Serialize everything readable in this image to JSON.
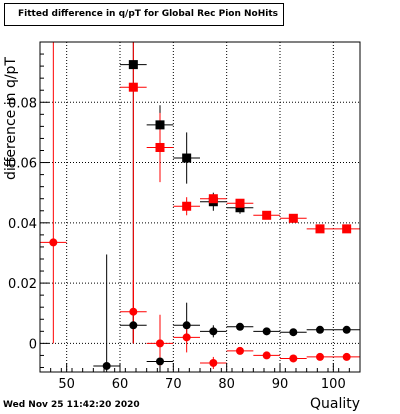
{
  "chart_data": {
    "type": "scatter",
    "title": "Fitted difference in q/pT for Global Rec Pion NoHits",
    "xlabel": "Quality",
    "ylabel": "difference in q/pT",
    "xlim": [
      45,
      105
    ],
    "ylim": [
      -0.0095,
      0.1
    ],
    "x_ticks": [
      "50",
      "60",
      "70",
      "80",
      "90",
      "100"
    ],
    "y_ticks": [
      "0",
      "0.02",
      "0.04",
      "0.06",
      "0.08"
    ],
    "grid": true,
    "footer": "Wed Nov 25 11:42:20 2020",
    "series": [
      {
        "color": "#000000",
        "marker": "square",
        "points": [
          {
            "x": 62.5,
            "y": 0.0925,
            "yerr_lo": 0.0925,
            "yerr_hi": 0.0925,
            "xerr": 2.5
          },
          {
            "x": 67.5,
            "y": 0.0725,
            "yerr_lo": 0.0065,
            "yerr_hi": 0.0065,
            "xerr": 2.5
          },
          {
            "x": 72.5,
            "y": 0.0615,
            "yerr_lo": 0.0085,
            "yerr_hi": 0.0085,
            "xerr": 2.5
          },
          {
            "x": 77.5,
            "y": 0.047,
            "yerr_lo": 0.003,
            "yerr_hi": 0.003,
            "xerr": 2.5
          },
          {
            "x": 82.5,
            "y": 0.045,
            "yerr_lo": 0.002,
            "yerr_hi": 0.002,
            "xerr": 2.5
          }
        ]
      },
      {
        "color": "#ff0000",
        "marker": "square",
        "points": [
          {
            "x": 62.5,
            "y": 0.085,
            "yerr_lo": 0.085,
            "yerr_hi": 0.085,
            "xerr": 2.5
          },
          {
            "x": 67.5,
            "y": 0.065,
            "yerr_lo": 0.0115,
            "yerr_hi": 0.0115,
            "xerr": 2.5
          },
          {
            "x": 72.5,
            "y": 0.0455,
            "yerr_lo": 0.003,
            "yerr_hi": 0.003,
            "xerr": 2.5
          },
          {
            "x": 77.5,
            "y": 0.048,
            "yerr_lo": 0.0015,
            "yerr_hi": 0.0015,
            "xerr": 2.5
          },
          {
            "x": 82.5,
            "y": 0.0465,
            "yerr_lo": 0.001,
            "yerr_hi": 0.001,
            "xerr": 2.5
          },
          {
            "x": 87.5,
            "y": 0.0425,
            "yerr_lo": 0.001,
            "yerr_hi": 0.001,
            "xerr": 2.5
          },
          {
            "x": 92.5,
            "y": 0.0415,
            "yerr_lo": 0.001,
            "yerr_hi": 0.001,
            "xerr": 2.5
          },
          {
            "x": 97.5,
            "y": 0.038,
            "yerr_lo": 0.001,
            "yerr_hi": 0.001,
            "xerr": 2.5
          },
          {
            "x": 102.5,
            "y": 0.038,
            "yerr_lo": 0.001,
            "yerr_hi": 0.001,
            "xerr": 2.5
          }
        ]
      },
      {
        "color": "#000000",
        "marker": "circle",
        "points": [
          {
            "x": 57.5,
            "y": -0.0075,
            "yerr_lo": 0.0075,
            "yerr_hi": 0.037,
            "xerr": 2.5
          },
          {
            "x": 62.5,
            "y": 0.006,
            "yerr_lo": 0.006,
            "yerr_hi": 0.0045,
            "xerr": 2.5
          },
          {
            "x": 67.5,
            "y": -0.006,
            "yerr_lo": 0.0035,
            "yerr_hi": 0.006,
            "xerr": 2.5
          },
          {
            "x": 72.5,
            "y": 0.006,
            "yerr_lo": 0.005,
            "yerr_hi": 0.0075,
            "xerr": 2.5
          },
          {
            "x": 77.5,
            "y": 0.004,
            "yerr_lo": 0.002,
            "yerr_hi": 0.002,
            "xerr": 2.5
          },
          {
            "x": 82.5,
            "y": 0.0055,
            "yerr_lo": 0.001,
            "yerr_hi": 0.001,
            "xerr": 2.5
          },
          {
            "x": 87.5,
            "y": 0.004,
            "yerr_lo": 0.0005,
            "yerr_hi": 0.0005,
            "xerr": 2.5
          },
          {
            "x": 92.5,
            "y": 0.0037,
            "yerr_lo": 0.0005,
            "yerr_hi": 0.0005,
            "xerr": 2.5
          },
          {
            "x": 97.5,
            "y": 0.0045,
            "yerr_lo": 0.0005,
            "yerr_hi": 0.0005,
            "xerr": 2.5
          },
          {
            "x": 102.5,
            "y": 0.0045,
            "yerr_lo": 0.0005,
            "yerr_hi": 0.0005,
            "xerr": 2.5
          }
        ]
      },
      {
        "color": "#ff0000",
        "marker": "circle",
        "points": [
          {
            "x": 47.5,
            "y": 0.0335,
            "yerr_lo": 0.0335,
            "yerr_hi": 0.0665,
            "xerr": 2.5
          },
          {
            "x": 62.5,
            "y": 0.0105,
            "yerr_lo": 0.0105,
            "yerr_hi": 0.0105,
            "xerr": 2.5
          },
          {
            "x": 67.5,
            "y": 0,
            "yerr_lo": 0.0075,
            "yerr_hi": 0.0095,
            "xerr": 2.5
          },
          {
            "x": 72.5,
            "y": 0.002,
            "yerr_lo": 0.005,
            "yerr_hi": 0.005,
            "xerr": 2.5
          },
          {
            "x": 77.5,
            "y": -0.0065,
            "yerr_lo": 0.002,
            "yerr_hi": 0.002,
            "xerr": 2.5
          },
          {
            "x": 82.5,
            "y": -0.0025,
            "yerr_lo": 0.001,
            "yerr_hi": 0.001,
            "xerr": 2.5
          },
          {
            "x": 87.5,
            "y": -0.004,
            "yerr_lo": 0.0005,
            "yerr_hi": 0.0005,
            "xerr": 2.5
          },
          {
            "x": 92.5,
            "y": -0.005,
            "yerr_lo": 0.0005,
            "yerr_hi": 0.0005,
            "xerr": 2.5
          },
          {
            "x": 97.5,
            "y": -0.0045,
            "yerr_lo": 0.0005,
            "yerr_hi": 0.0005,
            "xerr": 2.5
          },
          {
            "x": 102.5,
            "y": -0.0045,
            "yerr_lo": 0.0005,
            "yerr_hi": 0.0005,
            "xerr": 2.5
          }
        ]
      }
    ]
  }
}
